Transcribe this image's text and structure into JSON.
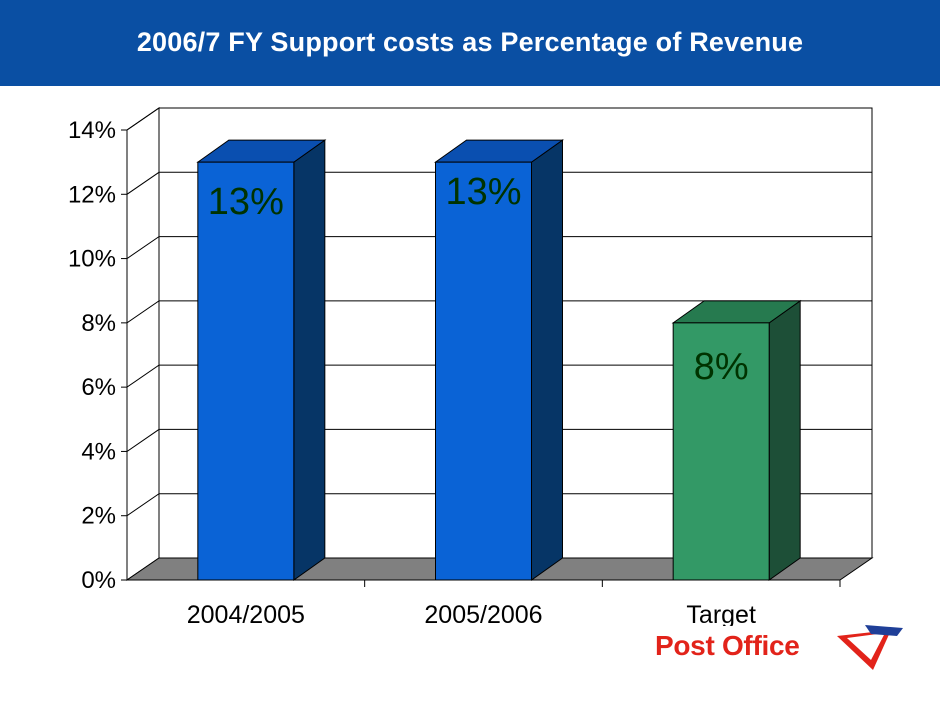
{
  "header": {
    "title": "2006/7 FY Support costs as Percentage of Revenue"
  },
  "colors": {
    "header_bg": "#0a4fa3",
    "bar_blue_front": "#0a63d6",
    "bar_blue_side": "#063566",
    "bar_blue_top": "#0a4fb0",
    "bar_green_front": "#339966",
    "bar_green_side": "#1d4f37",
    "bar_green_top": "#267a4f",
    "floor": "#808080",
    "data_label": "#003300",
    "brand_red": "#e2231a",
    "brand_blue": "#1f3f98"
  },
  "chart_data": {
    "type": "bar",
    "categories": [
      "2004/2005",
      "2005/2006",
      "Target"
    ],
    "values": [
      0.13,
      0.13,
      0.08
    ],
    "data_labels": [
      "13%",
      "13%",
      "8%"
    ],
    "title": "2006/7 FY Support costs as Percentage of Revenue",
    "xlabel": "",
    "ylabel": "",
    "ylim": [
      0,
      0.14
    ],
    "y_ticks": [
      "0%",
      "2%",
      "4%",
      "6%",
      "8%",
      "10%",
      "12%",
      "14%"
    ],
    "grid": true,
    "legend": "none",
    "style": "3d-column"
  },
  "logo": {
    "text": "Post Office",
    "mark": "post-office-envelope-icon"
  }
}
